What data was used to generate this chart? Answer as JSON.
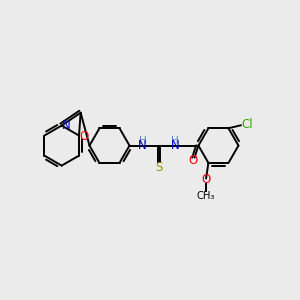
{
  "background_color": "#ebebeb",
  "bond_color": "#000000",
  "lw": 1.4,
  "colors": {
    "O": "#ff0000",
    "N": "#0000cc",
    "S": "#999900",
    "Cl": "#33aa00",
    "C": "#000000",
    "H": "#5588aa"
  }
}
